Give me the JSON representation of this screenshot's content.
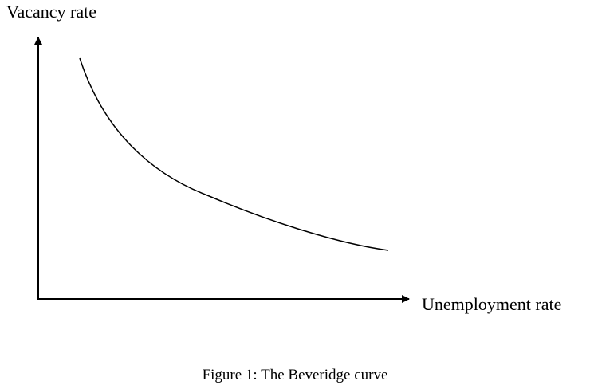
{
  "axes": {
    "y_label": "Vacancy rate",
    "x_label": "Unemployment rate"
  },
  "caption": "Figure 1: The Beveridge curve"
}
